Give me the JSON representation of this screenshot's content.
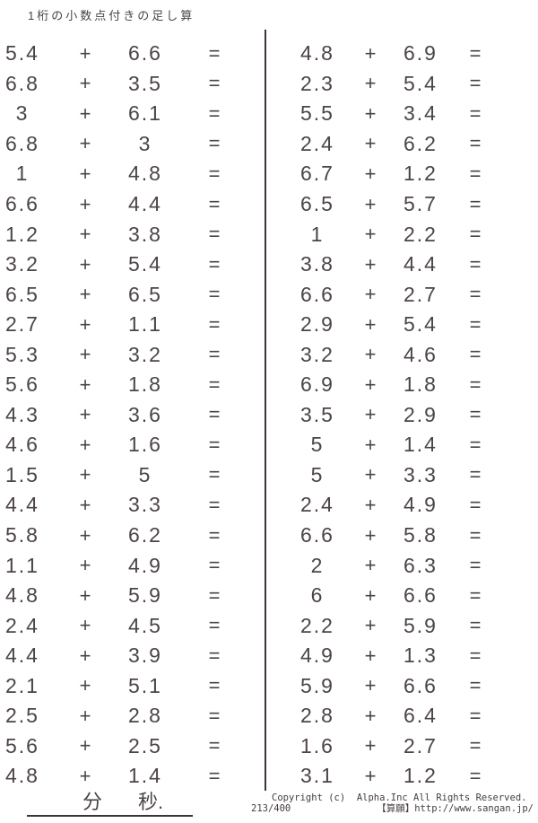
{
  "title": "1桁の小数点付きの足し算",
  "operator": "+",
  "equals": "=",
  "columns": {
    "left": [
      {
        "a": "5.4",
        "b": "6.6"
      },
      {
        "a": "6.8",
        "b": "3.5"
      },
      {
        "a": "3",
        "b": "6.1"
      },
      {
        "a": "6.8",
        "b": "3"
      },
      {
        "a": "1",
        "b": "4.8"
      },
      {
        "a": "6.6",
        "b": "4.4"
      },
      {
        "a": "1.2",
        "b": "3.8"
      },
      {
        "a": "3.2",
        "b": "5.4"
      },
      {
        "a": "6.5",
        "b": "6.5"
      },
      {
        "a": "2.7",
        "b": "1.1"
      },
      {
        "a": "5.3",
        "b": "3.2"
      },
      {
        "a": "5.6",
        "b": "1.8"
      },
      {
        "a": "4.3",
        "b": "3.6"
      },
      {
        "a": "4.6",
        "b": "1.6"
      },
      {
        "a": "1.5",
        "b": "5"
      },
      {
        "a": "4.4",
        "b": "3.3"
      },
      {
        "a": "5.8",
        "b": "6.2"
      },
      {
        "a": "1.1",
        "b": "4.9"
      },
      {
        "a": "4.8",
        "b": "5.9"
      },
      {
        "a": "2.4",
        "b": "4.5"
      },
      {
        "a": "4.4",
        "b": "3.9"
      },
      {
        "a": "2.1",
        "b": "5.1"
      },
      {
        "a": "2.5",
        "b": "2.8"
      },
      {
        "a": "5.6",
        "b": "2.5"
      },
      {
        "a": "4.8",
        "b": "1.4"
      }
    ],
    "right": [
      {
        "a": "4.8",
        "b": "6.9"
      },
      {
        "a": "2.3",
        "b": "5.4"
      },
      {
        "a": "5.5",
        "b": "3.4"
      },
      {
        "a": "2.4",
        "b": "6.2"
      },
      {
        "a": "6.7",
        "b": "1.2"
      },
      {
        "a": "6.5",
        "b": "5.7"
      },
      {
        "a": "1",
        "b": "2.2"
      },
      {
        "a": "3.8",
        "b": "4.4"
      },
      {
        "a": "6.6",
        "b": "2.7"
      },
      {
        "a": "2.9",
        "b": "5.4"
      },
      {
        "a": "3.2",
        "b": "4.6"
      },
      {
        "a": "6.9",
        "b": "1.8"
      },
      {
        "a": "3.5",
        "b": "2.9"
      },
      {
        "a": "5",
        "b": "1.4"
      },
      {
        "a": "5",
        "b": "3.3"
      },
      {
        "a": "2.4",
        "b": "4.9"
      },
      {
        "a": "6.6",
        "b": "5.8"
      },
      {
        "a": "2",
        "b": "6.3"
      },
      {
        "a": "6",
        "b": "6.6"
      },
      {
        "a": "2.2",
        "b": "5.9"
      },
      {
        "a": "4.9",
        "b": "1.3"
      },
      {
        "a": "5.9",
        "b": "6.6"
      },
      {
        "a": "2.8",
        "b": "6.4"
      },
      {
        "a": "1.6",
        "b": "2.7"
      },
      {
        "a": "3.1",
        "b": "1.2"
      }
    ]
  },
  "footer": {
    "minutes_label": "分",
    "seconds_label": "秒.",
    "copyright_line1": "Copyright (c)  Alpha.Inc All Rights Reserved.",
    "sheet_number": "213/400",
    "site_credit": "【算願】http://www.sangan.jp/"
  },
  "colors": {
    "ink": "#4a4243",
    "line": "#3c3435",
    "background": "#ffffff"
  }
}
